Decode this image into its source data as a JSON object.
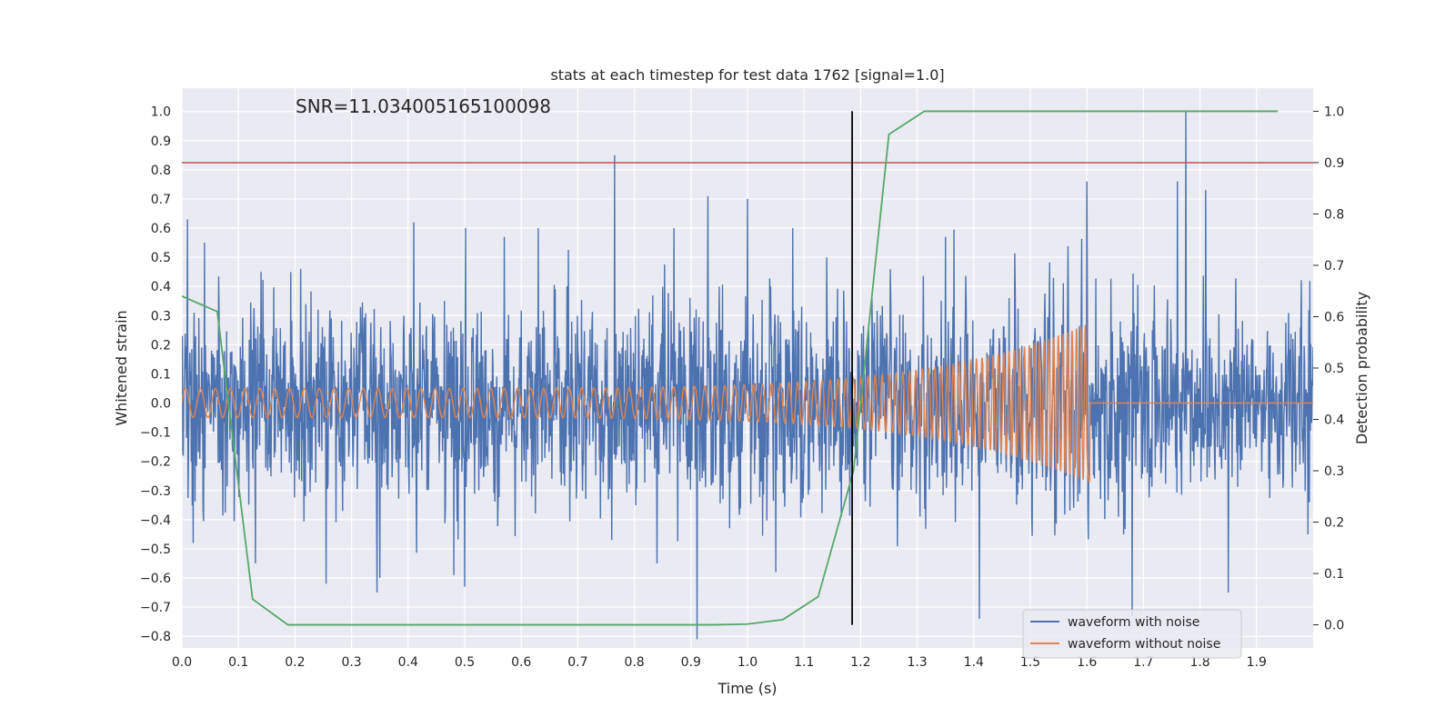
{
  "chart_data": {
    "type": "line",
    "title": "stats at each timestep for test data 1762 [signal=1.0]",
    "xlabel": "Time (s)",
    "ylabel_left": "Whitened strain",
    "ylabel_right": "Detection probability",
    "xlim": [
      0.0,
      2.0
    ],
    "ylim_left": [
      -0.84,
      1.08
    ],
    "ylim_right": [
      -0.045,
      1.045
    ],
    "x_ticks": [
      "0.0",
      "0.1",
      "0.2",
      "0.3",
      "0.4",
      "0.5",
      "0.6",
      "0.7",
      "0.8",
      "0.9",
      "1.0",
      "1.1",
      "1.2",
      "1.3",
      "1.4",
      "1.5",
      "1.6",
      "1.7",
      "1.8",
      "1.9"
    ],
    "y_ticks_left": [
      "-0.8",
      "-0.7",
      "-0.6",
      "-0.5",
      "-0.4",
      "-0.3",
      "-0.2",
      "-0.1",
      "0.0",
      "0.1",
      "0.2",
      "0.3",
      "0.4",
      "0.5",
      "0.6",
      "0.7",
      "0.8",
      "0.9",
      "1.0"
    ],
    "y_ticks_right": [
      "0.0",
      "0.1",
      "0.2",
      "0.3",
      "0.4",
      "0.5",
      "0.6",
      "0.7",
      "0.8",
      "0.9",
      "1.0"
    ],
    "grid": true,
    "legend_position": "lower-right",
    "annotation": "SNR=11.034005165100098",
    "threshold": {
      "value": 0.9,
      "axis": "right",
      "color": "#c44e52"
    },
    "event_marker": {
      "x": 1.185,
      "y_range_right": [
        0.0,
        1.0
      ],
      "color": "#000000"
    },
    "series": [
      {
        "name": "waveform with noise",
        "axis": "left",
        "color": "#4c72b0",
        "kind": "noise",
        "noise_std": 0.17,
        "peaks": [
          [
            0.01,
            0.63
          ],
          [
            0.02,
            -0.48
          ],
          [
            0.04,
            0.55
          ],
          [
            0.13,
            -0.55
          ],
          [
            0.14,
            0.45
          ],
          [
            0.21,
            0.46
          ],
          [
            0.255,
            -0.62
          ],
          [
            0.35,
            0.52
          ],
          [
            0.35,
            -0.6
          ],
          [
            0.41,
            0.62
          ],
          [
            0.5,
            -0.63
          ],
          [
            0.57,
            0.57
          ],
          [
            0.63,
            0.6
          ],
          [
            0.765,
            0.85
          ],
          [
            0.76,
            -0.47
          ],
          [
            0.84,
            -0.55
          ],
          [
            0.87,
            0.6
          ],
          [
            0.93,
            0.71
          ],
          [
            1.0,
            0.7
          ],
          [
            1.05,
            -0.58
          ],
          [
            1.08,
            0.6
          ],
          [
            1.14,
            0.5
          ],
          [
            1.35,
            0.57
          ],
          [
            1.41,
            -0.74
          ],
          [
            1.6,
            0.76
          ],
          [
            1.68,
            -0.73
          ],
          [
            1.775,
            1.0
          ],
          [
            1.76,
            0.76
          ],
          [
            1.81,
            0.73
          ],
          [
            1.85,
            -0.65
          ]
        ]
      },
      {
        "name": "waveform without noise",
        "axis": "left",
        "color": "#dd8452",
        "kind": "chirp",
        "start_freq": 38,
        "end_freq": 130,
        "start_amp": 0.05,
        "end_amp": 0.27,
        "merger_time": 1.6,
        "ringdown_time": 1.605
      },
      {
        "name": "detection probability",
        "axis": "right",
        "color": "#55a868",
        "kind": "line",
        "x": [
          0.0,
          0.0625,
          0.125,
          0.1875,
          0.25,
          0.3125,
          0.375,
          0.4375,
          0.5,
          0.5625,
          0.625,
          0.6875,
          0.75,
          0.8125,
          0.875,
          0.9375,
          1.0,
          1.0625,
          1.125,
          1.1875,
          1.25,
          1.3125,
          1.375,
          1.4375,
          1.5,
          1.5625,
          1.625,
          1.6875,
          1.75,
          1.8125,
          1.875,
          1.9375
        ],
        "y": [
          0.64,
          0.61,
          0.05,
          0.0,
          0.0,
          0.0,
          0.0,
          0.0,
          0.0,
          0.0,
          0.0,
          0.0,
          0.0,
          0.0,
          0.0,
          0.0,
          0.0015,
          0.01,
          0.055,
          0.3,
          0.955,
          1.0,
          1.0,
          1.0,
          1.0,
          1.0,
          1.0,
          1.0,
          1.0,
          1.0,
          1.0,
          1.0
        ]
      }
    ]
  }
}
